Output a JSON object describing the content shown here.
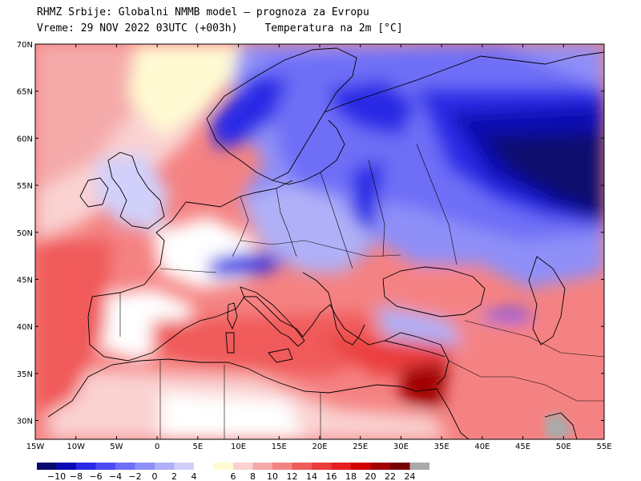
{
  "header": {
    "line1": "RHMZ Srbije: Globalni NMMB model — prognoza za Evropu",
    "valid_label": "Vreme: 29 NOV 2022 03UTC (+003h)",
    "field_label": "Temperatura na 2m [°C]"
  },
  "map": {
    "region": "Europe",
    "lon_range": [
      -15,
      55
    ],
    "lat_range": [
      28,
      70
    ],
    "lon_ticks": [
      "15W",
      "10W",
      "5W",
      "0",
      "5E",
      "10E",
      "15E",
      "20E",
      "25E",
      "30E",
      "35E",
      "40E",
      "45E",
      "50E",
      "55E"
    ],
    "lat_ticks": [
      "70N",
      "65N",
      "60N",
      "55N",
      "50N",
      "45N",
      "40N",
      "35N",
      "30N"
    ]
  },
  "colorbar": {
    "colors": [
      "#0a0a6e",
      "#0a0ab4",
      "#2a2ae6",
      "#4b4bf5",
      "#6e6ef7",
      "#8f8ff8",
      "#b0b0f8",
      "#d0d0fa",
      "#ffffff",
      "#fffad2",
      "#fad2d2",
      "#f5aaaa",
      "#f58282",
      "#f05a5a",
      "#eb3c3c",
      "#e61e1e",
      "#d20000",
      "#a00000",
      "#780000",
      "#aaaaaa"
    ],
    "labels": [
      "-10",
      "-8",
      "-6",
      "-4",
      "-2",
      "0",
      "2",
      "4",
      "6",
      "8",
      "10",
      "12",
      "14",
      "16",
      "18",
      "20",
      "22",
      "24"
    ]
  }
}
